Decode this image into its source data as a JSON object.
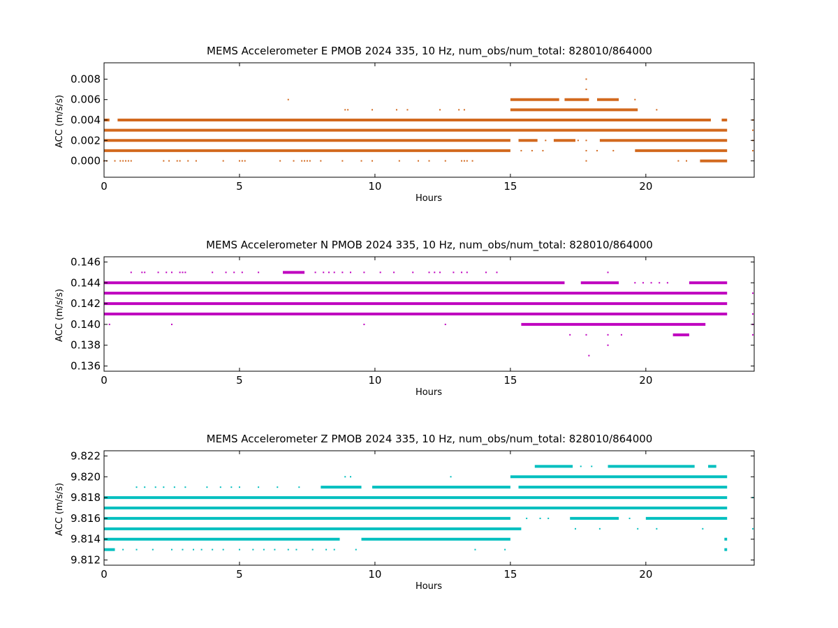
{
  "colors": {
    "E": "#d2691e",
    "N": "#bf00bf",
    "Z": "#00bfbf"
  },
  "chart_data": [
    {
      "type": "scatter",
      "title": "MEMS Accelerometer E PMOB 2024 335, 10 Hz, num_obs/num_total: 828010/864000",
      "xlabel": "Hours",
      "ylabel": "ACC (m/s/s)",
      "xlim": [
        0,
        24
      ],
      "ylim": [
        -0.0016,
        0.0096
      ],
      "xticks": [
        0,
        5,
        10,
        15,
        20
      ],
      "xtick_labels": [
        "0",
        "5",
        "10",
        "15",
        "20"
      ],
      "yticks": [
        0.0,
        0.002,
        0.004,
        0.006,
        0.008
      ],
      "ytick_labels": [
        "0.000",
        "0.002",
        "0.004",
        "0.006",
        "0.008"
      ],
      "color": "#d2691e",
      "series": [
        {
          "levels": [
            {
              "y": 0.001,
              "segments": [
                [
                  0.0,
                  15.0
                ],
                [
                  19.6,
                  23.0
                ]
              ],
              "dots": [
                15.4,
                15.8,
                16.2,
                17.8,
                18.2,
                18.8,
                24.0
              ]
            },
            {
              "y": 0.002,
              "segments": [
                [
                  0.0,
                  15.0
                ],
                [
                  15.3,
                  16.0
                ],
                [
                  16.6,
                  17.4
                ],
                [
                  18.3,
                  23.0
                ]
              ],
              "dots": [
                15.9,
                16.3,
                17.5,
                17.8,
                24.0
              ]
            },
            {
              "y": 0.003,
              "segments": [
                [
                  0.0,
                  23.0
                ]
              ],
              "dots": [
                24.0
              ]
            },
            {
              "y": 0.004,
              "segments": [
                [
                  0.0,
                  0.2
                ],
                [
                  0.5,
                  22.4
                ],
                [
                  22.8,
                  23.0
                ]
              ],
              "dots": [
                24.0
              ]
            },
            {
              "y": 0.005,
              "segments": [
                [
                  15.0,
                  19.7
                ]
              ],
              "dots": [
                8.9,
                9.0,
                9.9,
                10.8,
                11.2,
                12.4,
                13.1,
                13.3,
                20.4
              ]
            },
            {
              "y": 0.006,
              "segments": [
                [
                  15.0,
                  16.8
                ],
                [
                  17.0,
                  17.9
                ],
                [
                  18.2,
                  19.0
                ]
              ],
              "dots": [
                6.8,
                19.6
              ]
            },
            {
              "y": 0.0,
              "segments": [
                [
                  22.0,
                  23.0
                ]
              ],
              "dots": [
                0.0,
                0.1,
                0.4,
                0.6,
                0.7,
                0.8,
                0.9,
                1.0,
                2.2,
                2.4,
                2.7,
                2.8,
                3.1,
                3.4,
                4.4,
                5.0,
                5.1,
                5.2,
                6.5,
                7.0,
                7.3,
                7.4,
                7.5,
                7.6,
                8.0,
                8.8,
                9.5,
                9.9,
                10.9,
                11.6,
                12.0,
                12.6,
                13.2,
                13.3,
                13.4,
                13.6,
                17.8,
                21.2,
                21.5
              ]
            },
            {
              "y": 0.007,
              "segments": [],
              "dots": [
                17.8
              ]
            },
            {
              "y": 0.008,
              "segments": [],
              "dots": [
                17.8
              ]
            }
          ]
        }
      ]
    },
    {
      "type": "scatter",
      "title": "MEMS Accelerometer N PMOB 2024 335, 10 Hz, num_obs/num_total: 828010/864000",
      "xlabel": "Hours",
      "ylabel": "ACC (m/s/s)",
      "xlim": [
        0,
        24
      ],
      "ylim": [
        0.1355,
        0.1465
      ],
      "xticks": [
        0,
        5,
        10,
        15,
        20
      ],
      "xtick_labels": [
        "0",
        "5",
        "10",
        "15",
        "20"
      ],
      "yticks": [
        0.136,
        0.138,
        0.14,
        0.142,
        0.144,
        0.146
      ],
      "ytick_labels": [
        "0.136",
        "0.138",
        "0.140",
        "0.142",
        "0.144",
        "0.146"
      ],
      "color": "#bf00bf",
      "series": [
        {
          "levels": [
            {
              "y": 0.144,
              "segments": [
                [
                  0.0,
                  17.0
                ],
                [
                  17.6,
                  19.0
                ],
                [
                  21.6,
                  23.0
                ]
              ],
              "dots": [
                19.6,
                19.9,
                20.2,
                20.5,
                20.8
              ]
            },
            {
              "y": 0.143,
              "segments": [
                [
                  0.0,
                  23.0
                ]
              ],
              "dots": [
                24.0
              ]
            },
            {
              "y": 0.142,
              "segments": [
                [
                  0.0,
                  23.0
                ]
              ],
              "dots": []
            },
            {
              "y": 0.141,
              "segments": [
                [
                  0.0,
                  23.0
                ]
              ],
              "dots": [
                24.0
              ]
            },
            {
              "y": 0.14,
              "segments": [
                [
                  15.4,
                  22.2
                ]
              ],
              "dots": [
                0.2,
                2.5,
                9.6,
                12.6,
                24.0
              ]
            },
            {
              "y": 0.145,
              "segments": [
                [
                  6.6,
                  7.4
                ]
              ],
              "dots": [
                1.0,
                1.4,
                1.5,
                2.0,
                2.3,
                2.5,
                2.8,
                2.9,
                3.0,
                4.0,
                4.5,
                4.8,
                5.1,
                5.7,
                7.8,
                8.1,
                8.3,
                8.5,
                8.8,
                9.1,
                9.6,
                10.2,
                10.7,
                11.4,
                12.0,
                12.2,
                12.4,
                12.9,
                13.2,
                13.4,
                14.1,
                14.5,
                18.6
              ]
            },
            {
              "y": 0.139,
              "segments": [
                [
                  21.0,
                  21.6
                ]
              ],
              "dots": [
                17.2,
                17.8,
                18.6,
                19.1,
                24.0
              ]
            },
            {
              "y": 0.138,
              "segments": [],
              "dots": [
                18.6
              ]
            },
            {
              "y": 0.137,
              "segments": [],
              "dots": [
                17.9
              ]
            }
          ]
        }
      ]
    },
    {
      "type": "scatter",
      "title": "MEMS Accelerometer Z PMOB 2024 335, 10 Hz, num_obs/num_total: 828010/864000",
      "xlabel": "Hours",
      "ylabel": "ACC (m/s/s)",
      "xlim": [
        0,
        24
      ],
      "ylim": [
        9.8115,
        9.8225
      ],
      "xticks": [
        0,
        5,
        10,
        15,
        20
      ],
      "xtick_labels": [
        "0",
        "5",
        "10",
        "15",
        "20"
      ],
      "yticks": [
        9.812,
        9.814,
        9.816,
        9.818,
        9.82,
        9.822
      ],
      "ytick_labels": [
        "9.812",
        "9.814",
        "9.816",
        "9.818",
        "9.820",
        "9.822"
      ],
      "color": "#00bfbf",
      "series": [
        {
          "levels": [
            {
              "y": 9.813,
              "segments": [
                [
                  0.0,
                  0.4
                ],
                [
                  22.9,
                  23.0
                ]
              ],
              "dots": [
                0.7,
                1.2,
                1.8,
                2.5,
                2.9,
                3.3,
                3.6,
                4.0,
                4.4,
                5.0,
                5.5,
                5.9,
                6.3,
                6.8,
                7.1,
                7.7,
                8.2,
                8.5,
                9.3,
                13.7,
                14.8
              ]
            },
            {
              "y": 9.814,
              "segments": [
                [
                  0.0,
                  8.7
                ],
                [
                  9.5,
                  15.0
                ],
                [
                  22.9,
                  23.0
                ]
              ],
              "dots": []
            },
            {
              "y": 9.815,
              "segments": [
                [
                  0.0,
                  15.4
                ]
              ],
              "dots": [
                17.4,
                18.3,
                19.7,
                20.4,
                22.1,
                24.0
              ]
            },
            {
              "y": 9.816,
              "segments": [
                [
                  0.0,
                  15.0
                ],
                [
                  17.2,
                  19.0
                ],
                [
                  20.0,
                  23.0
                ]
              ],
              "dots": [
                15.6,
                16.1,
                16.4,
                19.4,
                21.1,
                21.6
              ]
            },
            {
              "y": 9.817,
              "segments": [
                [
                  0.0,
                  23.0
                ]
              ],
              "dots": []
            },
            {
              "y": 9.818,
              "segments": [
                [
                  0.0,
                  23.0
                ]
              ],
              "dots": [
                24.0
              ]
            },
            {
              "y": 9.819,
              "segments": [
                [
                  8.0,
                  9.5
                ],
                [
                  9.9,
                  15.0
                ],
                [
                  15.3,
                  23.0
                ]
              ],
              "dots": [
                1.2,
                1.5,
                1.9,
                2.2,
                2.6,
                3.0,
                3.8,
                4.3,
                4.7,
                5.0,
                5.7,
                6.4,
                7.2
              ]
            },
            {
              "y": 9.82,
              "segments": [
                [
                  15.0,
                  23.0
                ]
              ],
              "dots": [
                8.9,
                9.1,
                12.8
              ]
            },
            {
              "y": 9.821,
              "segments": [
                [
                  15.9,
                  17.3
                ],
                [
                  18.6,
                  21.8
                ],
                [
                  22.3,
                  22.6
                ]
              ],
              "dots": [
                17.6,
                18.0
              ]
            }
          ]
        }
      ]
    }
  ]
}
